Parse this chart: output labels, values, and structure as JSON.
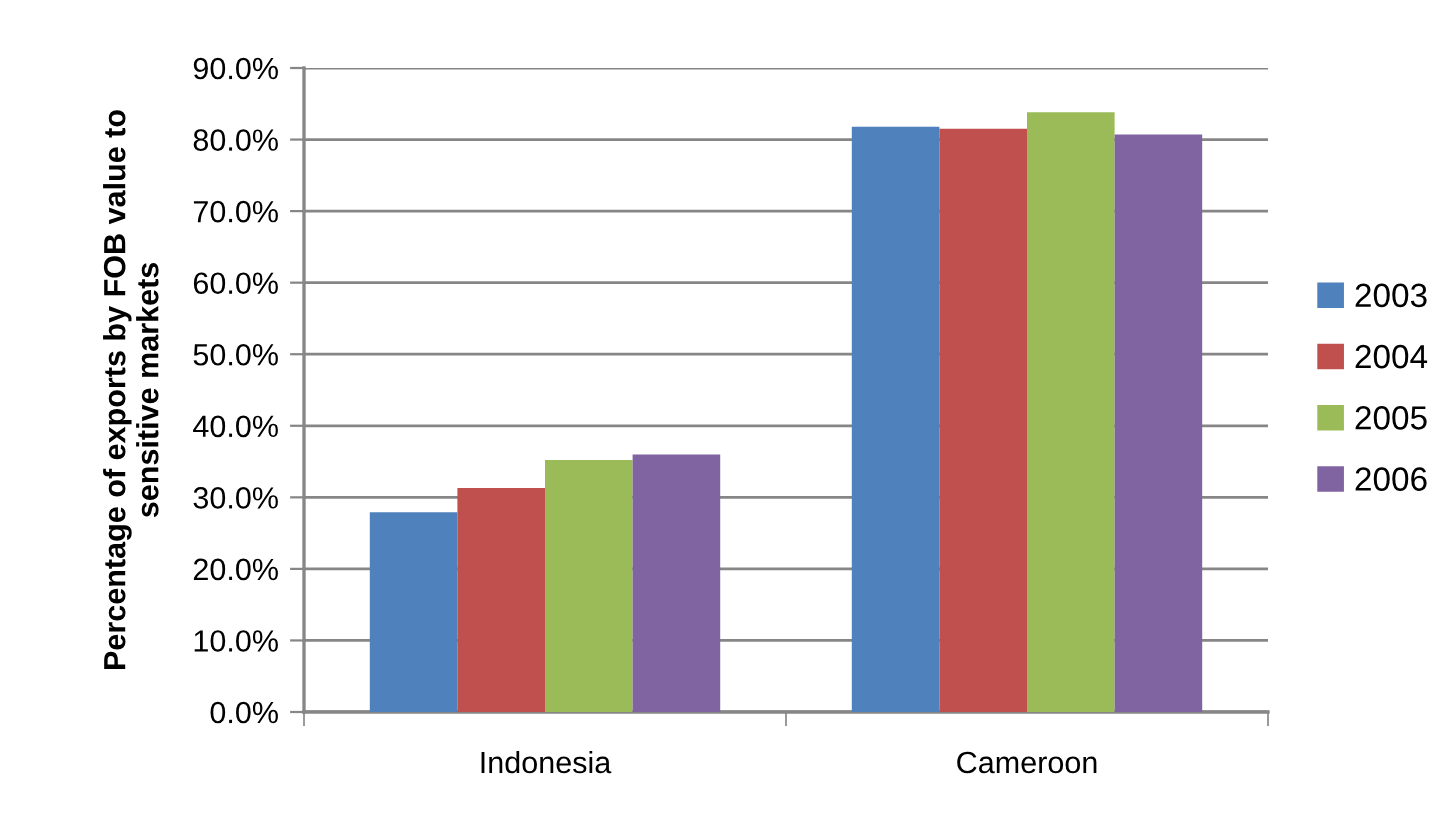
{
  "chart_data": {
    "type": "bar",
    "ylabel": "Percentage of exports by FOB value to\nsensitive markets",
    "categories": [
      "Indonesia",
      "Cameroon"
    ],
    "series": [
      {
        "name": "2003",
        "color": "#4f81bd",
        "values": [
          27.9,
          81.8
        ]
      },
      {
        "name": "2004",
        "color": "#c0504d",
        "values": [
          31.3,
          81.5
        ]
      },
      {
        "name": "2005",
        "color": "#9bbb59",
        "values": [
          35.2,
          83.8
        ]
      },
      {
        "name": "2006",
        "color": "#8064a2",
        "values": [
          36.0,
          80.7
        ]
      }
    ],
    "ylim": [
      0,
      90
    ],
    "yticks": [
      {
        "value": 0,
        "label": "0.0%"
      },
      {
        "value": 10,
        "label": "10.0%"
      },
      {
        "value": 20,
        "label": "20.0%"
      },
      {
        "value": 30,
        "label": "30.0%"
      },
      {
        "value": 40,
        "label": "40.0%"
      },
      {
        "value": 50,
        "label": "50.0%"
      },
      {
        "value": 60,
        "label": "60.0%"
      },
      {
        "value": 70,
        "label": "70.0%"
      },
      {
        "value": 80,
        "label": "80.0%"
      },
      {
        "value": 90,
        "label": "90.0%"
      }
    ],
    "grid": "y",
    "legend": "right"
  }
}
